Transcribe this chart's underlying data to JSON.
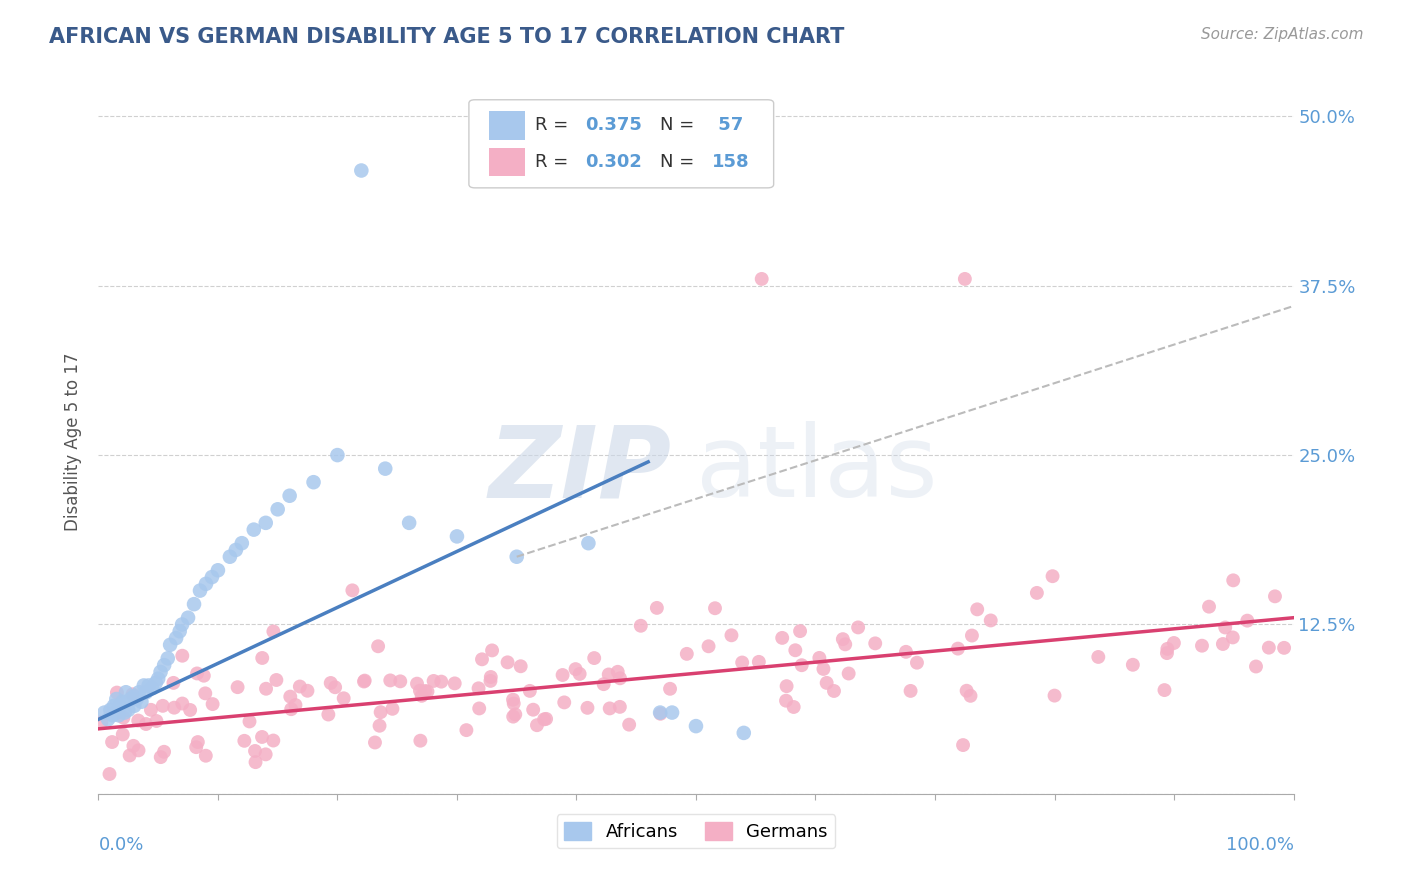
{
  "title": "AFRICAN VS GERMAN DISABILITY AGE 5 TO 17 CORRELATION CHART",
  "source": "Source: ZipAtlas.com",
  "ylabel": "Disability Age 5 to 17",
  "africans_R": 0.375,
  "africans_N": 57,
  "germans_R": 0.302,
  "germans_N": 158,
  "african_color": "#a8c8ed",
  "german_color": "#f4afc5",
  "african_line_color": "#4a7fc0",
  "german_line_color": "#d94070",
  "dash_line_color": "#bbbbbb",
  "title_color": "#3a5a8a",
  "axis_label_color": "#5b9bd5",
  "ylabel_color": "#555555",
  "background_color": "#ffffff",
  "grid_color": "#d0d0d0",
  "watermark_color": "#ccd8e8",
  "xlim": [
    0.0,
    1.0
  ],
  "ylim": [
    0.0,
    0.52
  ],
  "ytick_vals": [
    0.0,
    0.125,
    0.25,
    0.375,
    0.5
  ],
  "ytick_labels": [
    "",
    "12.5%",
    "25.0%",
    "37.5%",
    "50.0%"
  ],
  "africans_x": [
    0.005,
    0.008,
    0.01,
    0.012,
    0.013,
    0.015,
    0.015,
    0.017,
    0.018,
    0.02,
    0.022,
    0.023,
    0.025,
    0.027,
    0.03,
    0.03,
    0.032,
    0.034,
    0.036,
    0.038,
    0.04,
    0.042,
    0.045,
    0.048,
    0.05,
    0.052,
    0.055,
    0.058,
    0.06,
    0.065,
    0.068,
    0.07,
    0.075,
    0.08,
    0.085,
    0.09,
    0.095,
    0.1,
    0.11,
    0.115,
    0.12,
    0.13,
    0.14,
    0.15,
    0.16,
    0.18,
    0.2,
    0.22,
    0.24,
    0.26,
    0.3,
    0.35,
    0.41,
    0.47,
    0.48,
    0.5,
    0.54
  ],
  "africans_y": [
    0.06,
    0.055,
    0.062,
    0.058,
    0.065,
    0.06,
    0.07,
    0.058,
    0.065,
    0.068,
    0.06,
    0.075,
    0.062,
    0.07,
    0.072,
    0.065,
    0.07,
    0.075,
    0.068,
    0.08,
    0.075,
    0.08,
    0.078,
    0.082,
    0.085,
    0.09,
    0.095,
    0.1,
    0.11,
    0.115,
    0.12,
    0.125,
    0.13,
    0.14,
    0.15,
    0.155,
    0.16,
    0.165,
    0.175,
    0.18,
    0.185,
    0.195,
    0.2,
    0.21,
    0.22,
    0.23,
    0.25,
    0.46,
    0.24,
    0.2,
    0.19,
    0.175,
    0.185,
    0.06,
    0.06,
    0.05,
    0.045
  ],
  "africans_line_x": [
    0.0,
    0.46
  ],
  "africans_line_y": [
    0.055,
    0.245
  ],
  "dash_line_x": [
    0.35,
    1.0
  ],
  "dash_line_y": [
    0.175,
    0.36
  ],
  "germans_line_x": [
    0.0,
    1.0
  ],
  "germans_line_y": [
    0.048,
    0.13
  ]
}
